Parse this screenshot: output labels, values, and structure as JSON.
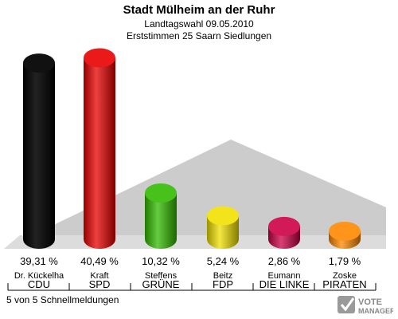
{
  "header": {
    "title": "Stadt Mülheim an der Ruhr",
    "subtitle1": "Landtagswahl 09.05.2010",
    "subtitle2": "Erststimmen 25 Saarn Siedlungen"
  },
  "footer": {
    "text": "5 von 5 Schnellmeldungen"
  },
  "logo": {
    "line1": "VOTE",
    "line2": "MANAGER"
  },
  "chart_data": {
    "type": "bar",
    "title": "Stadt Mülheim an der Ruhr",
    "categories": [
      "CDU",
      "SPD",
      "GRÜNE",
      "FDP",
      "DIE LINKE",
      "PIRATEN"
    ],
    "candidates": [
      "Dr. Kückelha",
      "Kraft",
      "Steffens",
      "Beitz",
      "Eumann",
      "Zoske"
    ],
    "values": [
      39.31,
      40.49,
      10.32,
      5.24,
      2.86,
      1.79
    ],
    "value_labels": [
      "39,31 %",
      "40,49 %",
      "10,32 %",
      "5,24 %",
      "2,86 %",
      "1,79 %"
    ],
    "colors": [
      "#000000",
      "#e80000",
      "#33bb00",
      "#f0e000",
      "#cc0044",
      "#ff8800"
    ],
    "ylim": [
      0,
      42
    ],
    "grid": false
  }
}
